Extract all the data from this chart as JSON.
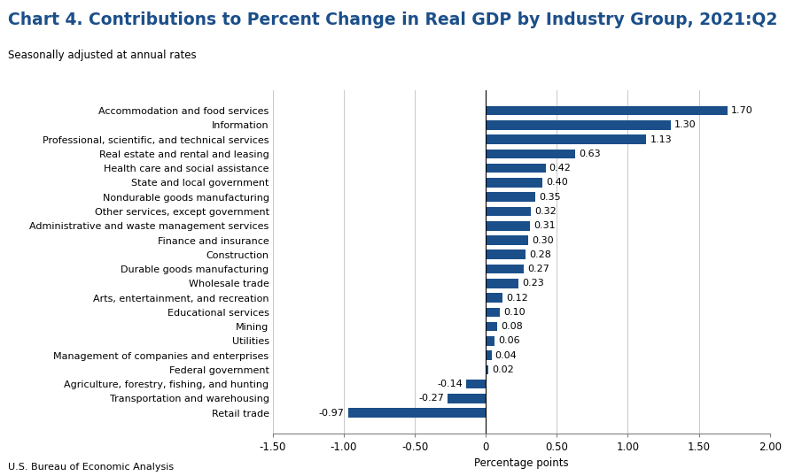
{
  "title": "Chart 4. Contributions to Percent Change in Real GDP by Industry Group, 2021:Q2",
  "subtitle": "Seasonally adjusted at annual rates",
  "xlabel": "Percentage points",
  "footer": "U.S. Bureau of Economic Analysis",
  "categories": [
    "Retail trade",
    "Transportation and warehousing",
    "Agriculture, forestry, fishing, and hunting",
    "Federal government",
    "Management of companies and enterprises",
    "Utilities",
    "Mining",
    "Educational services",
    "Arts, entertainment, and recreation",
    "Wholesale trade",
    "Durable goods manufacturing",
    "Construction",
    "Finance and insurance",
    "Administrative and waste management services",
    "Other services, except government",
    "Nondurable goods manufacturing",
    "State and local government",
    "Health care and social assistance",
    "Real estate and rental and leasing",
    "Professional, scientific, and technical services",
    "Information",
    "Accommodation and food services"
  ],
  "values": [
    -0.97,
    -0.27,
    -0.14,
    0.02,
    0.04,
    0.06,
    0.08,
    0.1,
    0.12,
    0.23,
    0.27,
    0.28,
    0.3,
    0.31,
    0.32,
    0.35,
    0.4,
    0.42,
    0.63,
    1.13,
    1.3,
    1.7
  ],
  "bar_color": "#1B4F8A",
  "xlim": [
    -1.5,
    2.0
  ],
  "xticks": [
    -1.5,
    -1.0,
    -0.5,
    0.0,
    0.5,
    1.0,
    1.5,
    2.0
  ],
  "xtick_labels": [
    "-1.50",
    "-1.00",
    "-0.50",
    "0",
    "0.50",
    "1.00",
    "1.50",
    "2.00"
  ],
  "title_color": "#1B4F8A",
  "title_fontsize": 13.5,
  "subtitle_fontsize": 8.5,
  "label_fontsize": 8.0,
  "tick_fontsize": 8.5,
  "value_fontsize": 8.0,
  "footer_fontsize": 8.0,
  "grid_color": "#C8C8C8"
}
